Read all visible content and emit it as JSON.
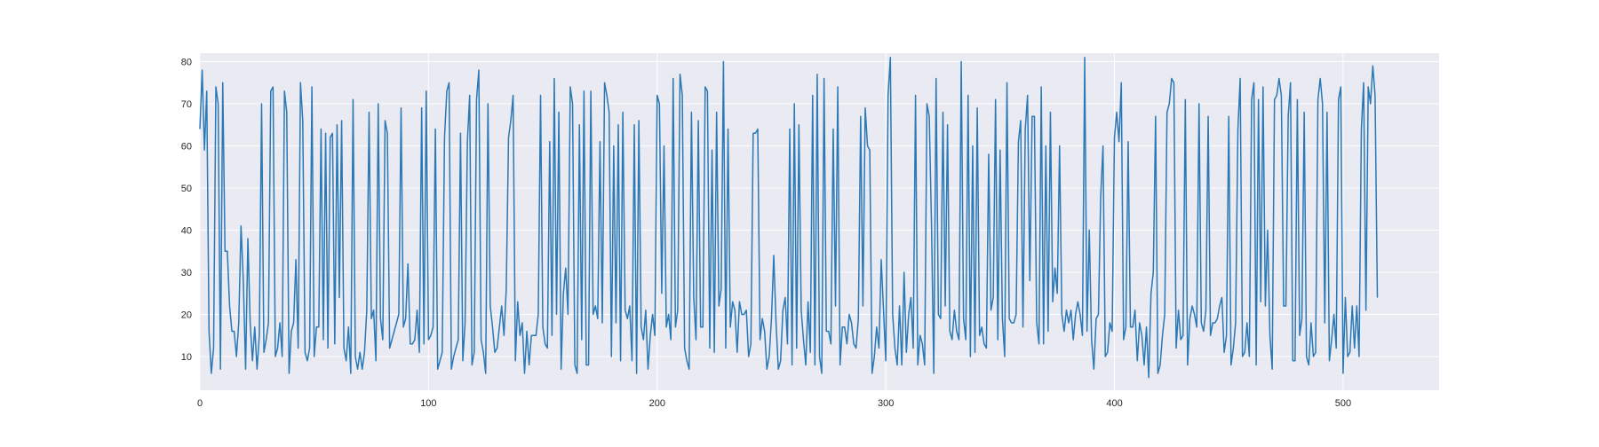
{
  "chart_data": {
    "type": "line",
    "title": "",
    "xlabel": "",
    "ylabel": "",
    "xlim": [
      0,
      542
    ],
    "ylim": [
      2,
      82
    ],
    "x_ticks": [
      0,
      100,
      200,
      300,
      400,
      500
    ],
    "y_ticks": [
      10,
      20,
      30,
      40,
      50,
      60,
      70,
      80
    ],
    "x_tick_labels": [
      "0",
      "100",
      "200",
      "300",
      "400",
      "500"
    ],
    "y_tick_labels": [
      "10",
      "20",
      "30",
      "40",
      "50",
      "60",
      "70",
      "80"
    ],
    "grid": true,
    "legend": "none",
    "colors": {
      "line": "#2a78b5",
      "plot_bg": "#eaeaf2",
      "grid": "#ffffff",
      "text": "#262626"
    },
    "series": [
      {
        "x_start": 0,
        "x_step": 1,
        "values": [
          64,
          78,
          59,
          73,
          16,
          6,
          12,
          74,
          70,
          7,
          75,
          35,
          35,
          22,
          16,
          16,
          10,
          18,
          41,
          28,
          7,
          38,
          18,
          9,
          17,
          7,
          15,
          70,
          11,
          14,
          18,
          73,
          74,
          10,
          12,
          18,
          10,
          73,
          68,
          6,
          16,
          18,
          33,
          12,
          75,
          66,
          11,
          9,
          12,
          74,
          10,
          17,
          17,
          64,
          14,
          63,
          12,
          62,
          63,
          13,
          65,
          24,
          66,
          12,
          9,
          17,
          6,
          71,
          10,
          7,
          11,
          7,
          11,
          21,
          68,
          19,
          21,
          9,
          70,
          19,
          14,
          66,
          63,
          12,
          14,
          16,
          18,
          20,
          69,
          17,
          19,
          32,
          13,
          13,
          14,
          21,
          11,
          69,
          13,
          73,
          14,
          15,
          17,
          64,
          7,
          9,
          11,
          62,
          73,
          75,
          7,
          10,
          12,
          14,
          63,
          9,
          18,
          61,
          72,
          8,
          11,
          71,
          78,
          14,
          11,
          6,
          70,
          22,
          17,
          11,
          12,
          17,
          22,
          15,
          26,
          62,
          66,
          72,
          9,
          23,
          15,
          18,
          6,
          16,
          8,
          15,
          15,
          15,
          20,
          72,
          17,
          13,
          12,
          61,
          15,
          76,
          20,
          68,
          7,
          25,
          31,
          20,
          74,
          70,
          8,
          6,
          65,
          14,
          73,
          8,
          8,
          73,
          20,
          22,
          19,
          61,
          18,
          75,
          72,
          68,
          10,
          60,
          18,
          65,
          9,
          68,
          21,
          19,
          22,
          9,
          65,
          6,
          66,
          17,
          14,
          21,
          7,
          15,
          20,
          15,
          72,
          70,
          25,
          60,
          17,
          20,
          14,
          76,
          17,
          21,
          77,
          72,
          12,
          9,
          7,
          68,
          24,
          14,
          66,
          17,
          17,
          74,
          73,
          12,
          59,
          11,
          68,
          22,
          26,
          80,
          12,
          64,
          17,
          23,
          21,
          11,
          23,
          20,
          20,
          21,
          10,
          13,
          63,
          63,
          64,
          14,
          19,
          16,
          7,
          10,
          19,
          34,
          18,
          7,
          9,
          21,
          24,
          13,
          64,
          8,
          70,
          12,
          65,
          21,
          14,
          8,
          23,
          11,
          72,
          8,
          77,
          10,
          6,
          76,
          16,
          16,
          13,
          64,
          22,
          74,
          8,
          17,
          17,
          13,
          20,
          18,
          13,
          12,
          19,
          67,
          22,
          69,
          60,
          59,
          6,
          10,
          17,
          12,
          33,
          21,
          9,
          72,
          81,
          20,
          12,
          8,
          22,
          8,
          30,
          11,
          20,
          24,
          12,
          72,
          8,
          15,
          13,
          8,
          70,
          67,
          41,
          6,
          76,
          20,
          19,
          68,
          22,
          65,
          16,
          14,
          21,
          16,
          14,
          80,
          19,
          14,
          72,
          10,
          60,
          11,
          69,
          15,
          17,
          13,
          12,
          58,
          21,
          24,
          71,
          14,
          59,
          19,
          10,
          75,
          19,
          18,
          18,
          20,
          61,
          66,
          17,
          64,
          72,
          28,
          67,
          67,
          18,
          13,
          74,
          13,
          60,
          16,
          68,
          23,
          31,
          25,
          60,
          20,
          16,
          21,
          18,
          21,
          14,
          20,
          23,
          20,
          15,
          81,
          16,
          40,
          14,
          7,
          19,
          20,
          48,
          60,
          10,
          11,
          18,
          16,
          62,
          68,
          61,
          75,
          14,
          17,
          61,
          17,
          17,
          21,
          9,
          18,
          15,
          8,
          17,
          5,
          25,
          30,
          67,
          6,
          8,
          15,
          20,
          68,
          70,
          76,
          75,
          12,
          21,
          14,
          15,
          71,
          8,
          19,
          22,
          20,
          17,
          70,
          18,
          16,
          21,
          67,
          15,
          18,
          18,
          19,
          22,
          24,
          11,
          15,
          67,
          8,
          12,
          18,
          64,
          76,
          10,
          11,
          18,
          10,
          71,
          75,
          8,
          71,
          23,
          74,
          22,
          40,
          15,
          7,
          71,
          72,
          76,
          72,
          22,
          22,
          67,
          75,
          9,
          9,
          71,
          15,
          19,
          68,
          10,
          8,
          18,
          10,
          11,
          71,
          76,
          70,
          18,
          68,
          9,
          14,
          20,
          12,
          71,
          74,
          6,
          24,
          10,
          11,
          22,
          12,
          22,
          10,
          64,
          75,
          21,
          74,
          70,
          79,
          72,
          24
        ]
      }
    ]
  }
}
